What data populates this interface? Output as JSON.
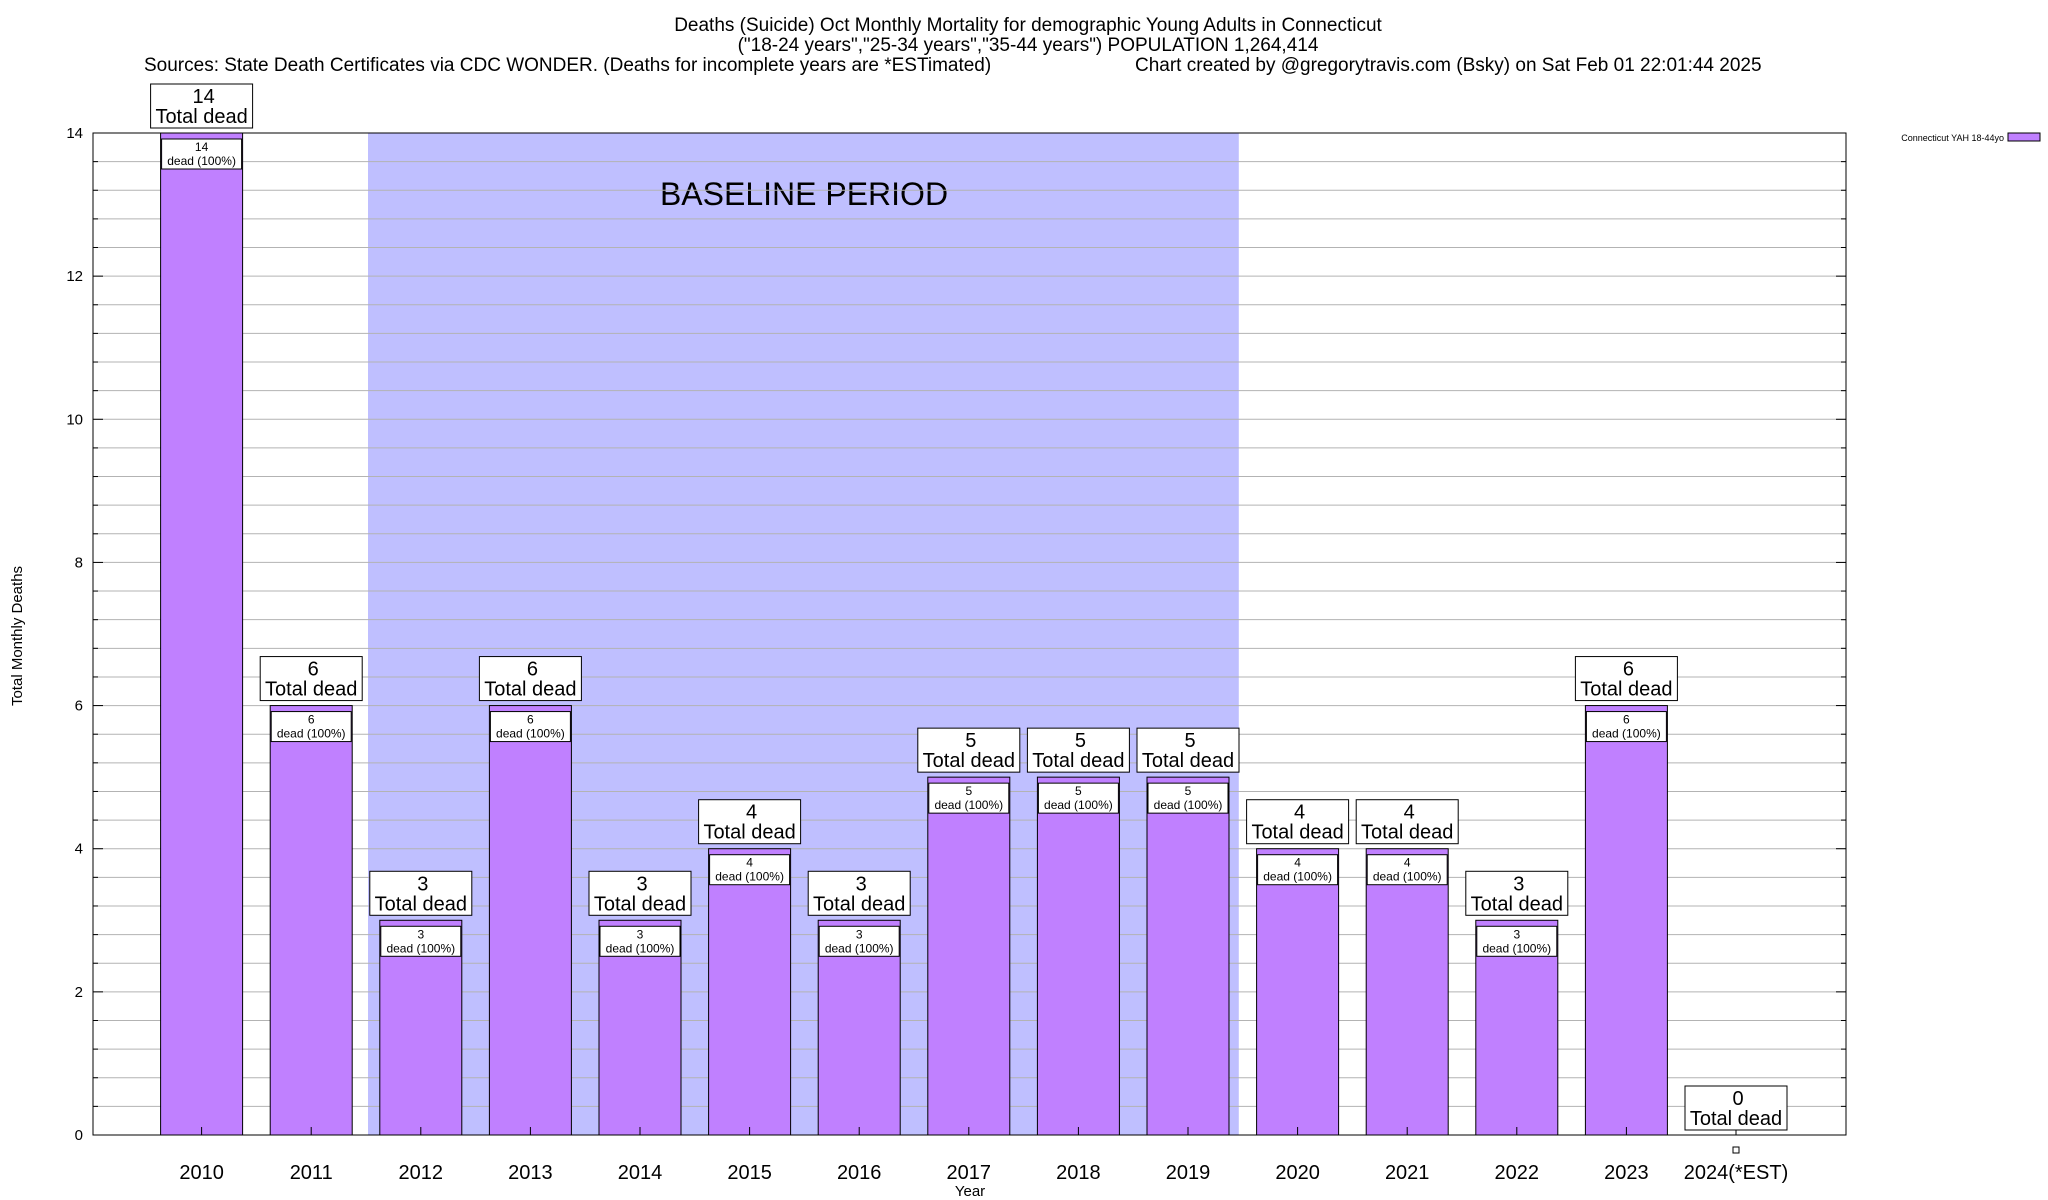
{
  "chart_data": {
    "type": "bar",
    "title_lines": [
      "Deaths (Suicide) Oct Monthly Mortality for demographic Young Adults in Connecticut",
      "(\"18-24 years\",\"25-34 years\",\"35-44 years\") POPULATION 1,264,414"
    ],
    "sources": "Sources: State Death Certificates via CDC WONDER. (Deaths for incomplete years are *ESTimated)",
    "credit": "Chart created by @gregorytravis.com (Bsky) on Sat Feb 01 22:01:44 2025",
    "xlabel": "Year",
    "ylabel": "Total Monthly Deaths",
    "ylim": [
      0,
      14
    ],
    "yticks": [
      0,
      2,
      4,
      6,
      8,
      10,
      12,
      14
    ],
    "grid": true,
    "legend": {
      "placement": "top-right",
      "label": "Connecticut YAH 18-44yo"
    },
    "baseline": {
      "label": "BASELINE PERIOD",
      "from": "2012",
      "to": "2019"
    },
    "total_label": "Total dead",
    "inner_label": "dead (100%)",
    "categories": [
      "2010",
      "2011",
      "2012",
      "2013",
      "2014",
      "2015",
      "2016",
      "2017",
      "2018",
      "2019",
      "2020",
      "2021",
      "2022",
      "2023",
      "2024(*EST)"
    ],
    "series": [
      {
        "name": "Connecticut YAH 18-44yo",
        "values": [
          14,
          6,
          3,
          6,
          3,
          4,
          3,
          5,
          5,
          5,
          4,
          4,
          3,
          6,
          0
        ]
      }
    ],
    "colors": {
      "bar": "#c080ff",
      "baseline": "#bfbfff",
      "grid": "#b3b3b3"
    }
  }
}
